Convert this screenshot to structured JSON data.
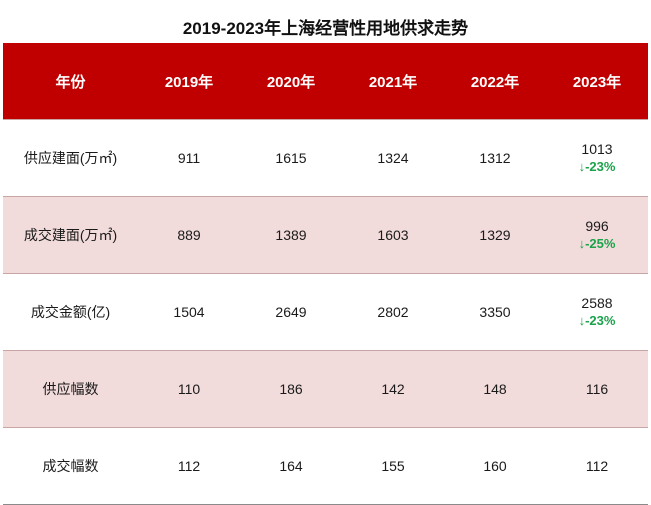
{
  "title": "2019-2023年上海经营性用地供求走势",
  "chart_data": {
    "type": "table",
    "columns": [
      "年份",
      "2019年",
      "2020年",
      "2021年",
      "2022年",
      "2023年"
    ],
    "rows": [
      {
        "label": "供应建面(万㎡)",
        "values": [
          "911",
          "1615",
          "1324",
          "1312",
          "1013"
        ],
        "change": "↓-23%"
      },
      {
        "label": "成交建面(万㎡)",
        "values": [
          "889",
          "1389",
          "1603",
          "1329",
          "996"
        ],
        "change": "↓-25%"
      },
      {
        "label": "成交金额(亿)",
        "values": [
          "1504",
          "2649",
          "2802",
          "3350",
          "2588"
        ],
        "change": "↓-23%"
      },
      {
        "label": "供应幅数",
        "values": [
          "110",
          "186",
          "142",
          "148",
          "116"
        ],
        "change": ""
      },
      {
        "label": "成交幅数",
        "values": [
          "112",
          "164",
          "155",
          "160",
          "112"
        ],
        "change": ""
      }
    ]
  },
  "colors": {
    "header_bg": "#c00000",
    "shade_bg": "#f2dcdb",
    "decline": "#1aa34a"
  }
}
